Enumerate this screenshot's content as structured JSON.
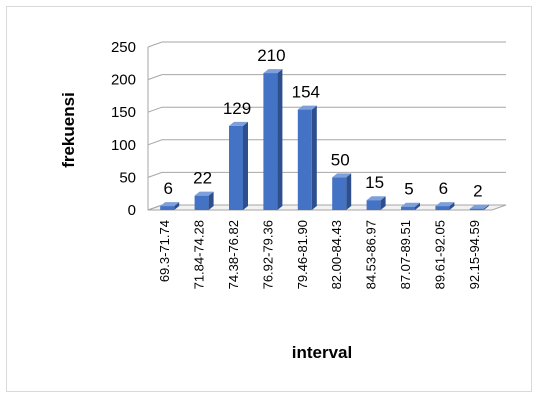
{
  "chart_data": {
    "type": "bar",
    "title": "",
    "xlabel": "interval",
    "ylabel": "frekuensi",
    "categories": [
      "69.3-71.74",
      "71.84-74.28",
      "74.38-76.82",
      "76.92-79.36",
      "79.46-81.90",
      "82.00-84.43",
      "84.53-86.97",
      "87.07-89.51",
      "89.61-92.05",
      "92.15-94.59"
    ],
    "values": [
      6,
      22,
      129,
      210,
      154,
      50,
      15,
      5,
      6,
      2
    ],
    "ylim": [
      0,
      250
    ],
    "yticks": [
      0,
      50,
      100,
      150,
      200,
      250
    ],
    "grid": true,
    "legend": "none",
    "style": "3d-column",
    "colors": {
      "bar_front": "#4472c4",
      "bar_side": "#2d4f8e",
      "bar_top": "#7da0dc",
      "grid": "#a6a6a6"
    }
  }
}
